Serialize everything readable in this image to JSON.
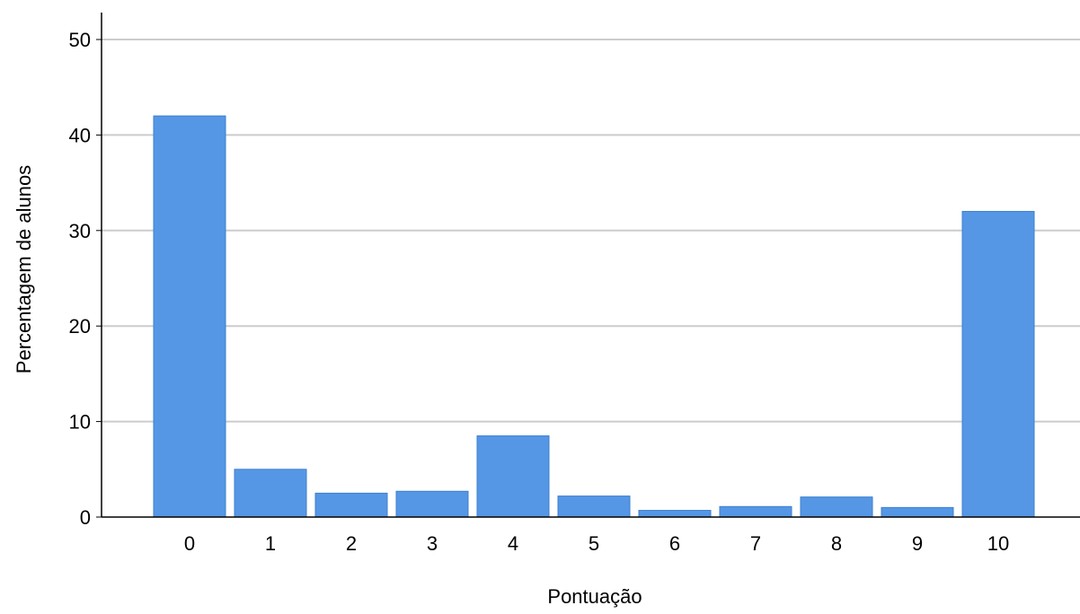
{
  "chart_data": {
    "type": "bar",
    "xlabel": "Pontuação",
    "ylabel": "Percentagem de alunos",
    "ylim": [
      0,
      50
    ],
    "yticks": [
      0,
      10,
      20,
      30,
      40,
      50
    ],
    "categories": [
      "0",
      "1",
      "2",
      "3",
      "4",
      "5",
      "6",
      "7",
      "8",
      "9",
      "10"
    ],
    "values": [
      42,
      5,
      2.5,
      2.7,
      8.5,
      2.2,
      0.7,
      1.1,
      2.1,
      1.0,
      32
    ],
    "grid": true,
    "bar_color": "#5597e5",
    "grid_color": "#cccccc",
    "axis_color": "#000000"
  }
}
